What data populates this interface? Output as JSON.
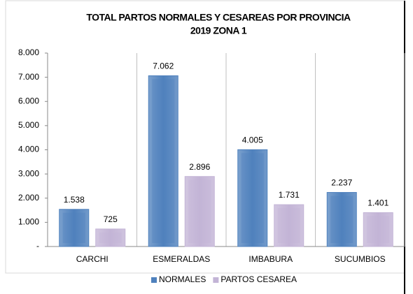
{
  "chart_data": {
    "type": "bar",
    "title": "TOTAL PARTOS NORMALES Y CESAREAS POR PROVINCIA",
    "subtitle": "2019 ZONA 1",
    "categories": [
      "CARCHI",
      "ESMERALDAS",
      "IMBABURA",
      "SUCUMBIOS"
    ],
    "series": [
      {
        "name": "NORMALES",
        "color": "#4f81bd",
        "values": [
          1538,
          7062,
          4005,
          2237
        ],
        "value_labels": [
          "1.538",
          "7.062",
          "4.005",
          "2.237"
        ]
      },
      {
        "name": "PARTOS CESAREA",
        "color": "#c3b4d6",
        "values": [
          725,
          2896,
          1731,
          1401
        ],
        "value_labels": [
          "725",
          "2.896",
          "1.731",
          "1.401"
        ]
      }
    ],
    "ylim": [
      0,
      8000
    ],
    "yticks": [
      {
        "value": 0,
        "label": "-"
      },
      {
        "value": 1000,
        "label": "1.000"
      },
      {
        "value": 2000,
        "label": "2.000"
      },
      {
        "value": 3000,
        "label": "3.000"
      },
      {
        "value": 4000,
        "label": "4.000"
      },
      {
        "value": 5000,
        "label": "5.000"
      },
      {
        "value": 6000,
        "label": "6.000"
      },
      {
        "value": 7000,
        "label": "7.000"
      },
      {
        "value": 8000,
        "label": "8.000"
      }
    ],
    "grid": true,
    "legend": "bottom"
  }
}
